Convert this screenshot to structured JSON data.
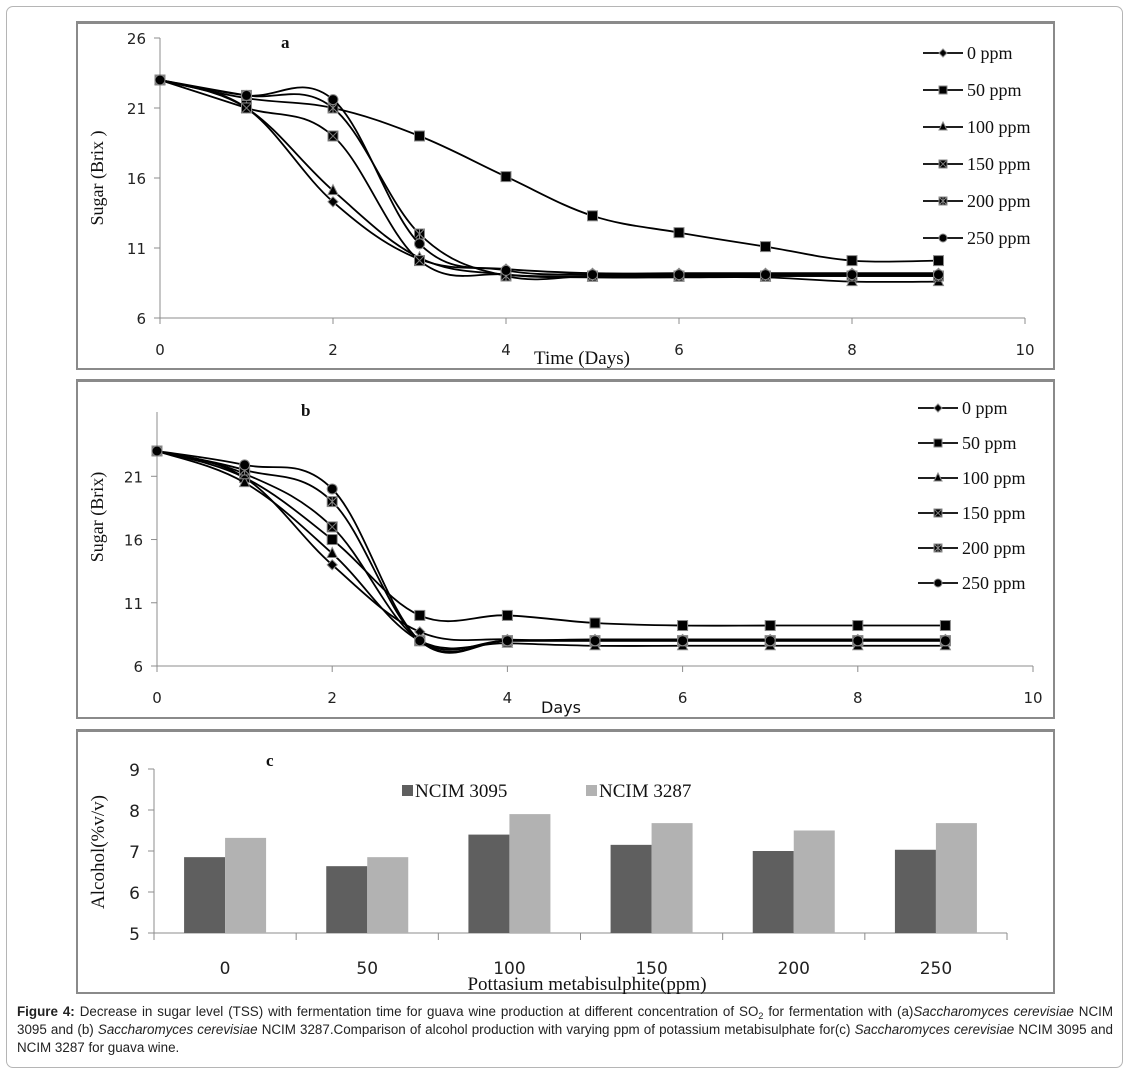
{
  "chart_data": [
    {
      "type": "line",
      "panel_label": "a",
      "title": "",
      "xlabel": "Time (Days)",
      "ylabel": "Sugar (Brix )",
      "xlim": [
        0,
        10
      ],
      "ylim": [
        6,
        26
      ],
      "xticks": [
        "0",
        "2",
        "4",
        "6",
        "8",
        "10"
      ],
      "yticks": [
        "6",
        "11",
        "16",
        "21",
        "26"
      ],
      "grid": false,
      "legend_position": "top-right",
      "x": [
        0,
        1,
        2,
        3,
        4,
        5,
        6,
        7,
        8,
        9
      ],
      "series": [
        {
          "name": "0 ppm",
          "marker": "diamond",
          "values": [
            23,
            21,
            14.3,
            10.2,
            9.5,
            9.2,
            9.2,
            9.2,
            9.2,
            9.2
          ]
        },
        {
          "name": "50 ppm",
          "marker": "square",
          "values": [
            23,
            21.7,
            21,
            19,
            16.1,
            13.3,
            12.1,
            11.1,
            10.1,
            10.1
          ]
        },
        {
          "name": "100 ppm",
          "marker": "triangle",
          "values": [
            23,
            21,
            15.1,
            10.3,
            9.1,
            8.9,
            8.9,
            8.9,
            8.6,
            8.6
          ]
        },
        {
          "name": "150 ppm",
          "marker": "square-x",
          "values": [
            23,
            21,
            19,
            10.1,
            9.1,
            9.0,
            9.0,
            9.0,
            9.0,
            9.0
          ]
        },
        {
          "name": "200 ppm",
          "marker": "square-star",
          "values": [
            23,
            21.9,
            21,
            12,
            9.0,
            9.0,
            9.0,
            9.0,
            9.0,
            9.0
          ]
        },
        {
          "name": "250 ppm",
          "marker": "circle",
          "values": [
            23,
            21.9,
            21.6,
            11.3,
            9.4,
            9.1,
            9.1,
            9.1,
            9.1,
            9.1
          ]
        }
      ]
    },
    {
      "type": "line",
      "panel_label": "b",
      "title": "",
      "xlabel": "Days",
      "ylabel": "Sugar (Brix)",
      "xlim": [
        0,
        10
      ],
      "ylim": [
        6,
        23
      ],
      "xticks": [
        "0",
        "2",
        "4",
        "6",
        "8",
        "10"
      ],
      "yticks": [
        "6",
        "11",
        "16",
        "21"
      ],
      "grid": false,
      "legend_position": "top-right",
      "x": [
        0,
        1,
        2,
        3,
        4,
        5,
        6,
        7,
        8,
        9
      ],
      "series": [
        {
          "name": "0 ppm",
          "marker": "diamond",
          "values": [
            23,
            20.9,
            14,
            8.7,
            8.1,
            8.1,
            8.1,
            8.1,
            8.1,
            8.1
          ]
        },
        {
          "name": "50 ppm",
          "marker": "square",
          "values": [
            23,
            20.9,
            16,
            10,
            10,
            9.4,
            9.2,
            9.2,
            9.2,
            9.2
          ]
        },
        {
          "name": "100 ppm",
          "marker": "triangle",
          "values": [
            23,
            20.5,
            14.9,
            8.0,
            7.8,
            7.6,
            7.6,
            7.6,
            7.6,
            7.6
          ]
        },
        {
          "name": "150 ppm",
          "marker": "square-x",
          "values": [
            23,
            21.2,
            17,
            8.0,
            8.0,
            8.0,
            8.0,
            8.0,
            8.0,
            8.0
          ]
        },
        {
          "name": "200 ppm",
          "marker": "square-star",
          "values": [
            23,
            21.5,
            19,
            8.0,
            8.0,
            8.0,
            8.0,
            8.0,
            8.0,
            8.0
          ]
        },
        {
          "name": "250 ppm",
          "marker": "circle",
          "values": [
            23,
            21.9,
            20,
            8.0,
            8.0,
            8.0,
            8.0,
            8.0,
            8.0,
            8.0
          ]
        }
      ]
    },
    {
      "type": "bar",
      "panel_label": "c",
      "title": "",
      "xlabel": "Pottasium metabisulphite(ppm)",
      "ylabel": "Alcohol(%v/v)",
      "categories": [
        "0",
        "50",
        "100",
        "150",
        "200",
        "250"
      ],
      "ylim": [
        5,
        9
      ],
      "yticks": [
        "5",
        "6",
        "7",
        "8",
        "9"
      ],
      "grid": false,
      "legend_position": "top",
      "series": [
        {
          "name": "NCIM 3095",
          "color": "#5f5f5f",
          "values": [
            6.85,
            6.63,
            7.4,
            7.15,
            7.0,
            7.03
          ]
        },
        {
          "name": "NCIM 3287",
          "color": "#b2b2b2",
          "values": [
            7.32,
            6.85,
            7.9,
            7.68,
            7.5,
            7.68
          ]
        }
      ]
    }
  ],
  "caption": {
    "label": "Figure 4:",
    "part1": " Decrease in sugar level (TSS) with fermentation time for guava wine production at different concentration of SO",
    "sub": "2",
    "part2": " for fermentation with (a)",
    "italic1": "Saccharomyces cerevisiae",
    "part3": " NCIM 3095 and (b) ",
    "italic2": "Saccharomyces cerevisiae",
    "part4": " NCIM 3287.Comparison of alcohol production with varying ppm of potassium metabisulphate for(c) ",
    "italic3": "Saccharomyces cerevisiae",
    "part5": " NCIM 3095 and NCIM 3287 for guava wine."
  }
}
